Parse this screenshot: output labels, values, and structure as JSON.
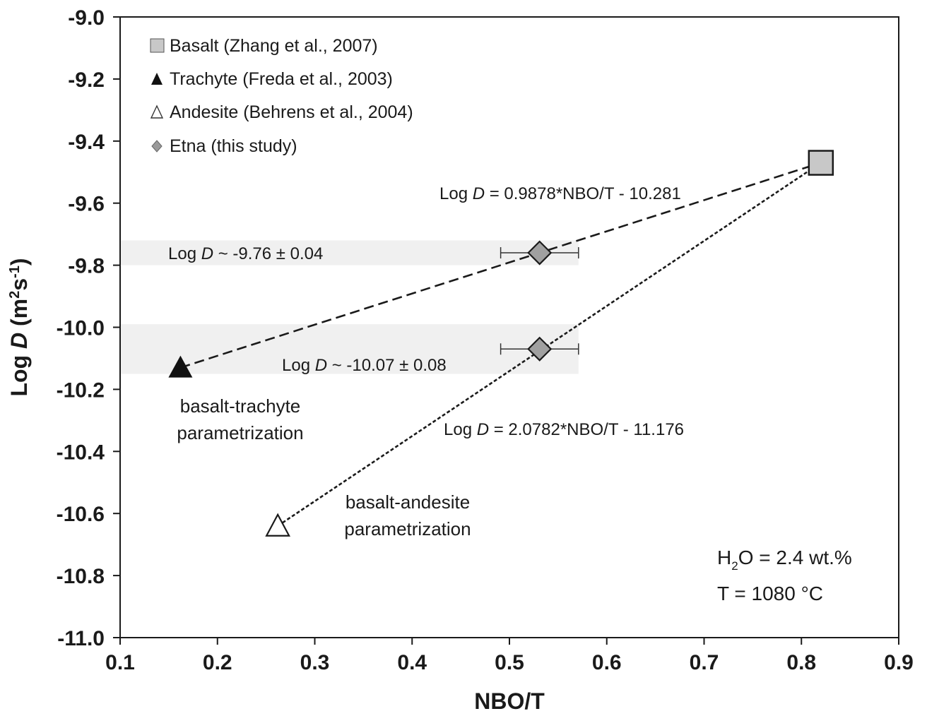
{
  "chart_data": {
    "type": "scatter",
    "xlabel": "NBO/T",
    "ylabel_parts": [
      "Log ",
      "D",
      " (m",
      "2",
      "s",
      "-1",
      ")"
    ],
    "xlim": [
      0.1,
      0.9
    ],
    "ylim": [
      -11.0,
      -9.0
    ],
    "x_ticks": [
      0.1,
      0.2,
      0.3,
      0.4,
      0.5,
      0.6,
      0.7,
      0.8,
      0.9
    ],
    "y_ticks": [
      -9.0,
      -9.2,
      -9.4,
      -9.6,
      -9.8,
      -10.0,
      -10.2,
      -10.4,
      -10.6,
      -10.8,
      -11.0
    ],
    "x_tick_labels": [
      "0.1",
      "0.2",
      "0.3",
      "0.4",
      "0.5",
      "0.6",
      "0.7",
      "0.8",
      "0.9"
    ],
    "y_tick_labels": [
      "-9.0",
      "-9.2",
      "-9.4",
      "-9.6",
      "-9.8",
      "-10.0",
      "-10.2",
      "-10.4",
      "-10.6",
      "-10.8",
      "-11.0"
    ],
    "grid": false,
    "legend_position": "top-left",
    "series": [
      {
        "name": "Basalt (Zhang et al., 2007)",
        "marker": "square",
        "color": "#c8c8c8",
        "points": [
          {
            "x": 0.82,
            "y": -9.47
          }
        ]
      },
      {
        "name": "Trachyte (Freda et al., 2003)",
        "marker": "triangle-filled",
        "color": "#111111",
        "points": [
          {
            "x": 0.162,
            "y": -10.13
          }
        ]
      },
      {
        "name": "Andesite (Behrens et al., 2004)",
        "marker": "triangle-open",
        "color": "#ffffff",
        "points": [
          {
            "x": 0.262,
            "y": -10.64
          }
        ]
      },
      {
        "name": "Etna (this study)",
        "marker": "diamond",
        "color": "#a0a0a0",
        "points": [
          {
            "x": 0.531,
            "y": -9.76,
            "xerr": 0.04
          },
          {
            "x": 0.531,
            "y": -10.07,
            "xerr": 0.04
          }
        ]
      }
    ],
    "bands": [
      {
        "y_center": -9.76,
        "half_width": 0.04,
        "x_from": 0.1,
        "x_to": 0.571,
        "color": "#f0f0f0"
      },
      {
        "y_center": -10.07,
        "half_width": 0.08,
        "x_from": 0.1,
        "x_to": 0.571,
        "color": "#f0f0f0"
      }
    ],
    "fit_lines": [
      {
        "from": [
          0.162,
          -10.13
        ],
        "to": [
          0.82,
          -9.47
        ],
        "style": "dashed"
      },
      {
        "from": [
          0.262,
          -10.64
        ],
        "to": [
          0.82,
          -9.47
        ],
        "style": "dotted"
      }
    ],
    "annotations": {
      "eq_trachyte": [
        "Log ",
        "D",
        " = 0.9878*NBO/T - 10.281"
      ],
      "eq_andesite": [
        "Log ",
        "D",
        " = 2.0782*NBO/T - 11.176"
      ],
      "band_upper": [
        "Log ",
        "D",
        " ~ -9.76 ± 0.04"
      ],
      "band_lower": [
        "Log ",
        "D",
        " ~ -10.07 ± 0.08"
      ],
      "param_trachyte": [
        "basalt-trachyte",
        "parametrization"
      ],
      "param_andesite": [
        "basalt-andesite",
        "parametrization"
      ],
      "conditions_water": [
        "H",
        "2",
        "O = 2.4 wt.%"
      ],
      "conditions_temp": "T = 1080 °C"
    }
  }
}
